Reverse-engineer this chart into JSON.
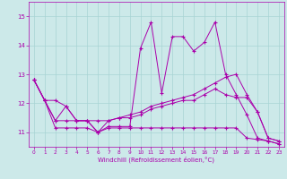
{
  "title": "",
  "xlabel": "Windchill (Refroidissement éolien,°C)",
  "ylabel": "",
  "background_color": "#cce9e9",
  "line_color": "#aa00aa",
  "xlim": [
    -0.5,
    23.5
  ],
  "ylim": [
    10.5,
    15.5
  ],
  "yticks": [
    11,
    12,
    13,
    14,
    15
  ],
  "xticks": [
    0,
    1,
    2,
    3,
    4,
    5,
    6,
    7,
    8,
    9,
    10,
    11,
    12,
    13,
    14,
    15,
    16,
    17,
    18,
    19,
    20,
    21,
    22,
    23
  ],
  "series": [
    {
      "x": [
        0,
        1,
        2,
        3,
        4,
        5,
        6,
        7,
        8,
        9,
        10,
        11,
        12,
        13,
        14,
        15,
        16,
        17,
        18,
        19,
        20,
        21,
        22,
        23
      ],
      "y": [
        12.8,
        12.1,
        12.1,
        11.9,
        11.4,
        11.4,
        11.0,
        11.2,
        11.2,
        11.2,
        13.9,
        14.8,
        12.35,
        14.3,
        14.3,
        13.8,
        14.1,
        14.8,
        13.0,
        12.3,
        11.6,
        10.8,
        10.7,
        10.6
      ]
    },
    {
      "x": [
        0,
        1,
        2,
        3,
        4,
        5,
        6,
        7,
        8,
        9,
        10,
        11,
        12,
        13,
        14,
        15,
        16,
        17,
        18,
        19,
        20,
        21,
        22,
        23
      ],
      "y": [
        12.8,
        12.1,
        11.15,
        11.15,
        11.15,
        11.15,
        11.0,
        11.15,
        11.15,
        11.15,
        11.15,
        11.15,
        11.15,
        11.15,
        11.15,
        11.15,
        11.15,
        11.15,
        11.15,
        11.15,
        10.8,
        10.75,
        10.7,
        10.6
      ]
    },
    {
      "x": [
        0,
        1,
        2,
        3,
        4,
        5,
        6,
        7,
        8,
        9,
        10,
        11,
        12,
        13,
        14,
        15,
        16,
        17,
        18,
        19,
        20,
        21,
        22,
        23
      ],
      "y": [
        12.8,
        12.1,
        11.4,
        11.4,
        11.4,
        11.4,
        11.4,
        11.4,
        11.5,
        11.6,
        11.7,
        11.9,
        12.0,
        12.1,
        12.2,
        12.3,
        12.5,
        12.7,
        12.9,
        13.0,
        12.3,
        11.7,
        10.8,
        10.7
      ]
    },
    {
      "x": [
        0,
        1,
        2,
        3,
        4,
        5,
        6,
        7,
        8,
        9,
        10,
        11,
        12,
        13,
        14,
        15,
        16,
        17,
        18,
        19,
        20,
        21,
        22,
        23
      ],
      "y": [
        12.8,
        12.1,
        11.4,
        11.9,
        11.4,
        11.4,
        11.0,
        11.4,
        11.5,
        11.5,
        11.6,
        11.8,
        11.9,
        12.0,
        12.1,
        12.1,
        12.3,
        12.5,
        12.3,
        12.2,
        12.2,
        11.7,
        10.8,
        10.7
      ]
    }
  ]
}
